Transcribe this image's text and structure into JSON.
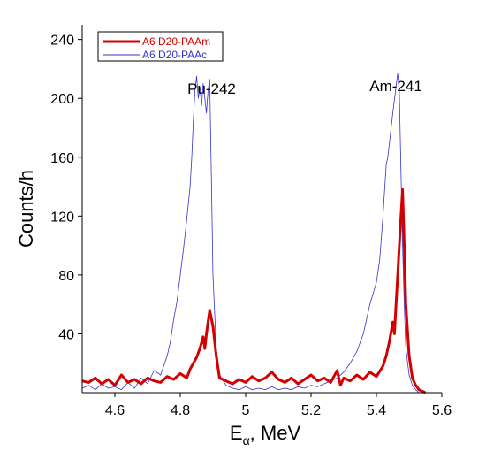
{
  "chart_data": {
    "type": "line",
    "xlabel_main": "E",
    "xlabel_sub": "α",
    "xlabel_tail": ", MeV",
    "ylabel": "Counts/h",
    "xlim": [
      4.5,
      5.6
    ],
    "ylim": [
      0,
      250
    ],
    "x_ticks": [
      4.6,
      4.8,
      5,
      5.2,
      5.4,
      5.6
    ],
    "x_tick_labels": [
      "4.6",
      "4.8",
      "5",
      "5.2",
      "5.4",
      "5.6"
    ],
    "y_ticks": [
      40,
      80,
      120,
      160,
      200,
      240
    ],
    "y_tick_labels": [
      "40",
      "80",
      "120",
      "160",
      "200",
      "240"
    ],
    "legend_position": "top-left",
    "annotations": [
      {
        "text": "Pu-242",
        "x": 4.97,
        "y": 203
      },
      {
        "text": "Am-241",
        "x": 5.54,
        "y": 205
      }
    ],
    "series": [
      {
        "name": "A6 D20-PAAm",
        "color": "#d40000",
        "line": "thick",
        "points": [
          [
            4.5,
            8
          ],
          [
            4.52,
            7
          ],
          [
            4.54,
            10
          ],
          [
            4.56,
            6
          ],
          [
            4.58,
            9
          ],
          [
            4.6,
            5
          ],
          [
            4.62,
            12
          ],
          [
            4.64,
            7
          ],
          [
            4.66,
            9
          ],
          [
            4.68,
            6
          ],
          [
            4.7,
            10
          ],
          [
            4.72,
            8
          ],
          [
            4.74,
            7
          ],
          [
            4.76,
            11
          ],
          [
            4.78,
            9
          ],
          [
            4.8,
            13
          ],
          [
            4.82,
            10
          ],
          [
            4.83,
            16
          ],
          [
            4.84,
            20
          ],
          [
            4.85,
            24
          ],
          [
            4.86,
            30
          ],
          [
            4.87,
            38
          ],
          [
            4.875,
            30
          ],
          [
            4.88,
            40
          ],
          [
            4.89,
            56
          ],
          [
            4.9,
            45
          ],
          [
            4.91,
            25
          ],
          [
            4.92,
            10
          ],
          [
            4.94,
            8
          ],
          [
            4.96,
            6
          ],
          [
            4.98,
            9
          ],
          [
            5.0,
            7
          ],
          [
            5.02,
            11
          ],
          [
            5.04,
            8
          ],
          [
            5.06,
            10
          ],
          [
            5.08,
            14
          ],
          [
            5.1,
            9
          ],
          [
            5.12,
            7
          ],
          [
            5.14,
            10
          ],
          [
            5.16,
            6
          ],
          [
            5.18,
            9
          ],
          [
            5.2,
            12
          ],
          [
            5.22,
            8
          ],
          [
            5.24,
            10
          ],
          [
            5.26,
            7
          ],
          [
            5.28,
            15
          ],
          [
            5.29,
            5
          ],
          [
            5.3,
            10
          ],
          [
            5.32,
            8
          ],
          [
            5.34,
            12
          ],
          [
            5.36,
            9
          ],
          [
            5.38,
            14
          ],
          [
            5.4,
            11
          ],
          [
            5.42,
            18
          ],
          [
            5.43,
            25
          ],
          [
            5.44,
            35
          ],
          [
            5.45,
            48
          ],
          [
            5.455,
            40
          ],
          [
            5.46,
            60
          ],
          [
            5.465,
            80
          ],
          [
            5.47,
            100
          ],
          [
            5.475,
            120
          ],
          [
            5.48,
            138
          ],
          [
            5.485,
            100
          ],
          [
            5.49,
            60
          ],
          [
            5.5,
            25
          ],
          [
            5.51,
            10
          ],
          [
            5.52,
            5
          ],
          [
            5.53,
            2
          ],
          [
            5.55,
            0
          ]
        ]
      },
      {
        "name": "A6 D20-PAAc",
        "color": "#3333cc",
        "line": "thin",
        "points": [
          [
            4.5,
            3
          ],
          [
            4.52,
            5
          ],
          [
            4.54,
            2
          ],
          [
            4.56,
            6
          ],
          [
            4.58,
            3
          ],
          [
            4.6,
            4
          ],
          [
            4.62,
            2
          ],
          [
            4.64,
            7
          ],
          [
            4.66,
            3
          ],
          [
            4.68,
            10
          ],
          [
            4.7,
            6
          ],
          [
            4.72,
            15
          ],
          [
            4.74,
            12
          ],
          [
            4.76,
            25
          ],
          [
            4.77,
            35
          ],
          [
            4.78,
            50
          ],
          [
            4.79,
            62
          ],
          [
            4.8,
            80
          ],
          [
            4.81,
            98
          ],
          [
            4.82,
            118
          ],
          [
            4.83,
            140
          ],
          [
            4.835,
            160
          ],
          [
            4.84,
            185
          ],
          [
            4.845,
            205
          ],
          [
            4.85,
            215
          ],
          [
            4.855,
            200
          ],
          [
            4.86,
            208
          ],
          [
            4.865,
            195
          ],
          [
            4.87,
            210
          ],
          [
            4.875,
            200
          ],
          [
            4.88,
            190
          ],
          [
            4.885,
            205
          ],
          [
            4.89,
            213
          ],
          [
            4.895,
            150
          ],
          [
            4.9,
            80
          ],
          [
            4.91,
            30
          ],
          [
            4.92,
            12
          ],
          [
            4.94,
            5
          ],
          [
            4.96,
            3
          ],
          [
            4.98,
            2
          ],
          [
            5.0,
            4
          ],
          [
            5.02,
            2
          ],
          [
            5.04,
            3
          ],
          [
            5.06,
            2
          ],
          [
            5.08,
            4
          ],
          [
            5.1,
            2
          ],
          [
            5.12,
            3
          ],
          [
            5.14,
            2
          ],
          [
            5.16,
            4
          ],
          [
            5.18,
            3
          ],
          [
            5.2,
            5
          ],
          [
            5.22,
            4
          ],
          [
            5.24,
            6
          ],
          [
            5.26,
            8
          ],
          [
            5.28,
            10
          ],
          [
            5.3,
            14
          ],
          [
            5.32,
            20
          ],
          [
            5.34,
            28
          ],
          [
            5.36,
            40
          ],
          [
            5.38,
            60
          ],
          [
            5.4,
            75
          ],
          [
            5.41,
            90
          ],
          [
            5.42,
            120
          ],
          [
            5.43,
            155
          ],
          [
            5.435,
            160
          ],
          [
            5.44,
            170
          ],
          [
            5.45,
            190
          ],
          [
            5.46,
            208
          ],
          [
            5.465,
            217
          ],
          [
            5.47,
            205
          ],
          [
            5.475,
            150
          ],
          [
            5.48,
            100
          ],
          [
            5.485,
            60
          ],
          [
            5.49,
            30
          ],
          [
            5.5,
            12
          ],
          [
            5.51,
            5
          ],
          [
            5.52,
            2
          ],
          [
            5.53,
            0
          ]
        ]
      }
    ]
  }
}
